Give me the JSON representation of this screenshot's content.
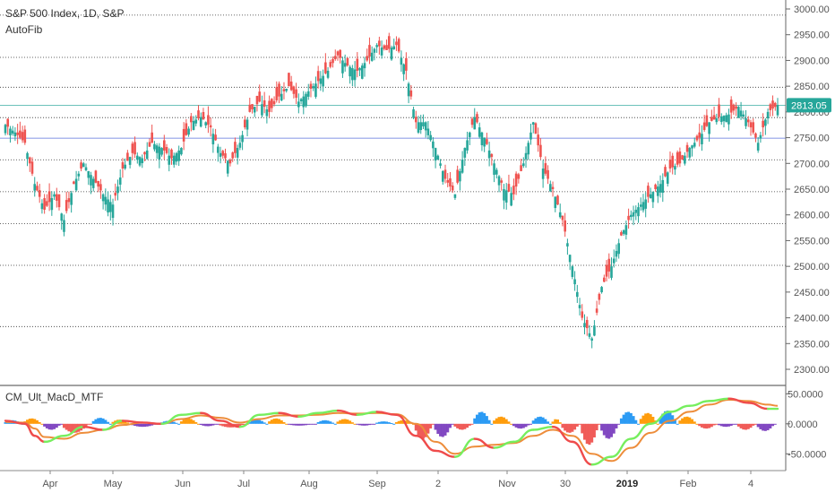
{
  "header": {
    "title": "S&P 500 Index, 1D, S&P",
    "indicator": "AutoFib"
  },
  "sub_panel": {
    "title": "CM_Ult_MacD_MTF"
  },
  "price_tag": {
    "value": "2813.05",
    "color": "#26a69a"
  },
  "colors": {
    "up": "#26a69a",
    "down": "#ef5350",
    "hist_blue": "#2196f3",
    "hist_orange": "#ff9800",
    "hist_red": "#ef5350",
    "hist_purple": "#7b3fbf",
    "macd_green": "#76ee5e",
    "macd_red": "#ef4b4b",
    "signal_orange": "#ed8d3b"
  },
  "chart_data": [
    {
      "type": "candlestick",
      "title": "S&P 500 Index, 1D, S&P",
      "y_axis": {
        "ticks": [
          "3000.00",
          "2950.00",
          "2900.00",
          "2850.00",
          "2800.00",
          "2750.00",
          "2700.00",
          "2650.00",
          "2600.00",
          "2550.00",
          "2500.00",
          "2450.00",
          "2400.00",
          "2350.00",
          "2300.00"
        ],
        "range": [
          2280,
          3010
        ],
        "position": "right"
      },
      "x_axis": {
        "ticks": [
          {
            "label": "Apr"
          },
          {
            "label": "May"
          },
          {
            "label": "Jun"
          },
          {
            "label": "Jul"
          },
          {
            "label": "Aug"
          },
          {
            "label": "Sep"
          },
          {
            "label": "2"
          },
          {
            "label": "Nov"
          },
          {
            "label": "30"
          },
          {
            "label": "2019",
            "bold": true
          },
          {
            "label": "Feb"
          },
          {
            "label": "4"
          }
        ]
      },
      "fib_levels": [
        2988,
        2906,
        2848,
        2789,
        2707,
        2645,
        2583,
        2502,
        2383
      ],
      "highlight_levels": [
        {
          "value": 2813,
          "color": "#26a69a"
        },
        {
          "value": 2749,
          "color": "#4a62d9"
        }
      ],
      "close_path": [
        [
          0,
          2775
        ],
        [
          2,
          2760
        ],
        [
          4,
          2740
        ],
        [
          6,
          2660
        ],
        [
          8,
          2610
        ],
        [
          10,
          2640
        ],
        [
          12,
          2590
        ],
        [
          14,
          2660
        ],
        [
          16,
          2700
        ],
        [
          18,
          2670
        ],
        [
          20,
          2640
        ],
        [
          22,
          2620
        ],
        [
          24,
          2690
        ],
        [
          26,
          2720
        ],
        [
          28,
          2710
        ],
        [
          30,
          2740
        ],
        [
          32,
          2730
        ],
        [
          34,
          2710
        ],
        [
          36,
          2730
        ],
        [
          38,
          2780
        ],
        [
          40,
          2790
        ],
        [
          42,
          2770
        ],
        [
          44,
          2720
        ],
        [
          46,
          2700
        ],
        [
          48,
          2740
        ],
        [
          50,
          2800
        ],
        [
          52,
          2820
        ],
        [
          54,
          2800
        ],
        [
          56,
          2830
        ],
        [
          58,
          2850
        ],
        [
          60,
          2820
        ],
        [
          62,
          2840
        ],
        [
          64,
          2860
        ],
        [
          66,
          2880
        ],
        [
          68,
          2910
        ],
        [
          70,
          2890
        ],
        [
          72,
          2880
        ],
        [
          74,
          2900
        ],
        [
          76,
          2930
        ],
        [
          78,
          2920
        ],
        [
          80,
          2930
        ],
        [
          82,
          2880
        ],
        [
          84,
          2780
        ],
        [
          86,
          2780
        ],
        [
          88,
          2730
        ],
        [
          90,
          2670
        ],
        [
          92,
          2640
        ],
        [
          94,
          2730
        ],
        [
          96,
          2790
        ],
        [
          98,
          2750
        ],
        [
          100,
          2700
        ],
        [
          102,
          2650
        ],
        [
          104,
          2640
        ],
        [
          106,
          2700
        ],
        [
          108,
          2780
        ],
        [
          110,
          2690
        ],
        [
          112,
          2650
        ],
        [
          114,
          2590
        ],
        [
          116,
          2500
        ],
        [
          118,
          2400
        ],
        [
          120,
          2360
        ],
        [
          122,
          2460
        ],
        [
          124,
          2500
        ],
        [
          126,
          2560
        ],
        [
          128,
          2600
        ],
        [
          130,
          2620
        ],
        [
          132,
          2640
        ],
        [
          134,
          2660
        ],
        [
          136,
          2690
        ],
        [
          138,
          2700
        ],
        [
          140,
          2730
        ],
        [
          142,
          2750
        ],
        [
          144,
          2780
        ],
        [
          146,
          2790
        ],
        [
          148,
          2795
        ],
        [
          150,
          2810
        ],
        [
          152,
          2780
        ],
        [
          154,
          2740
        ],
        [
          156,
          2800
        ],
        [
          158,
          2813
        ]
      ]
    },
    {
      "type": "bar+line",
      "title": "CM_Ult_MacD_MTF",
      "y_axis": {
        "ticks": [
          "50.0000",
          "0.0000",
          "-50.0000"
        ],
        "range": [
          -75,
          55
        ],
        "position": "right"
      },
      "histogram": [
        [
          0,
          "blue",
          6
        ],
        [
          4,
          "orange",
          9
        ],
        [
          8,
          "purple",
          -10
        ],
        [
          12,
          "red",
          -15
        ],
        [
          18,
          "blue",
          10
        ],
        [
          22,
          "orange",
          7
        ],
        [
          26,
          "purple",
          -5
        ],
        [
          32,
          "blue",
          5
        ],
        [
          36,
          "orange",
          9
        ],
        [
          40,
          "purple",
          -4
        ],
        [
          44,
          "red",
          -6
        ],
        [
          50,
          "blue",
          7
        ],
        [
          54,
          "orange",
          9
        ],
        [
          58,
          "purple",
          -3
        ],
        [
          64,
          "blue",
          6
        ],
        [
          68,
          "orange",
          8
        ],
        [
          72,
          "purple",
          -3
        ],
        [
          76,
          "blue",
          4
        ],
        [
          80,
          "orange",
          6
        ],
        [
          84,
          "red",
          -25
        ],
        [
          88,
          "purple",
          -22
        ],
        [
          92,
          "red",
          -10
        ],
        [
          96,
          "blue",
          20
        ],
        [
          100,
          "orange",
          12
        ],
        [
          104,
          "purple",
          -8
        ],
        [
          108,
          "blue",
          12
        ],
        [
          112,
          "orange",
          8
        ],
        [
          114,
          "red",
          -15
        ],
        [
          118,
          "red",
          -35
        ],
        [
          122,
          "purple",
          -25
        ],
        [
          126,
          "blue",
          20
        ],
        [
          130,
          "orange",
          18
        ],
        [
          134,
          "blue",
          22
        ],
        [
          138,
          "orange",
          12
        ],
        [
          142,
          "red",
          -8
        ],
        [
          146,
          "purple",
          -5
        ],
        [
          150,
          "red",
          -10
        ],
        [
          154,
          "purple",
          -12
        ]
      ],
      "macd_line": [
        [
          0,
          5
        ],
        [
          4,
          0
        ],
        [
          6,
          -20
        ],
        [
          8,
          -30
        ],
        [
          12,
          -20
        ],
        [
          16,
          -5
        ],
        [
          20,
          -10
        ],
        [
          24,
          5
        ],
        [
          28,
          2
        ],
        [
          32,
          0
        ],
        [
          36,
          15
        ],
        [
          40,
          18
        ],
        [
          44,
          5
        ],
        [
          48,
          -5
        ],
        [
          52,
          15
        ],
        [
          56,
          18
        ],
        [
          60,
          12
        ],
        [
          64,
          18
        ],
        [
          68,
          22
        ],
        [
          72,
          15
        ],
        [
          76,
          20
        ],
        [
          80,
          15
        ],
        [
          84,
          -20
        ],
        [
          88,
          -45
        ],
        [
          92,
          -55
        ],
        [
          96,
          -25
        ],
        [
          100,
          -40
        ],
        [
          104,
          -30
        ],
        [
          108,
          -10
        ],
        [
          112,
          -5
        ],
        [
          116,
          -30
        ],
        [
          120,
          -68
        ],
        [
          124,
          -55
        ],
        [
          128,
          -25
        ],
        [
          132,
          0
        ],
        [
          136,
          20
        ],
        [
          140,
          30
        ],
        [
          144,
          38
        ],
        [
          148,
          42
        ],
        [
          152,
          35
        ],
        [
          156,
          25
        ],
        [
          158,
          25
        ]
      ],
      "signal_line": [
        [
          0,
          3
        ],
        [
          4,
          2
        ],
        [
          6,
          -8
        ],
        [
          8,
          -22
        ],
        [
          12,
          -25
        ],
        [
          16,
          -15
        ],
        [
          20,
          -10
        ],
        [
          24,
          -2
        ],
        [
          28,
          2
        ],
        [
          32,
          0
        ],
        [
          36,
          8
        ],
        [
          40,
          14
        ],
        [
          44,
          10
        ],
        [
          48,
          2
        ],
        [
          52,
          8
        ],
        [
          56,
          14
        ],
        [
          60,
          14
        ],
        [
          64,
          15
        ],
        [
          68,
          18
        ],
        [
          72,
          17
        ],
        [
          76,
          18
        ],
        [
          80,
          16
        ],
        [
          84,
          0
        ],
        [
          88,
          -30
        ],
        [
          92,
          -50
        ],
        [
          96,
          -38
        ],
        [
          100,
          -35
        ],
        [
          104,
          -32
        ],
        [
          108,
          -20
        ],
        [
          112,
          -10
        ],
        [
          116,
          -20
        ],
        [
          120,
          -50
        ],
        [
          124,
          -62
        ],
        [
          128,
          -40
        ],
        [
          132,
          -15
        ],
        [
          136,
          5
        ],
        [
          140,
          20
        ],
        [
          144,
          32
        ],
        [
          148,
          40
        ],
        [
          152,
          38
        ],
        [
          156,
          32
        ],
        [
          158,
          30
        ]
      ]
    }
  ]
}
